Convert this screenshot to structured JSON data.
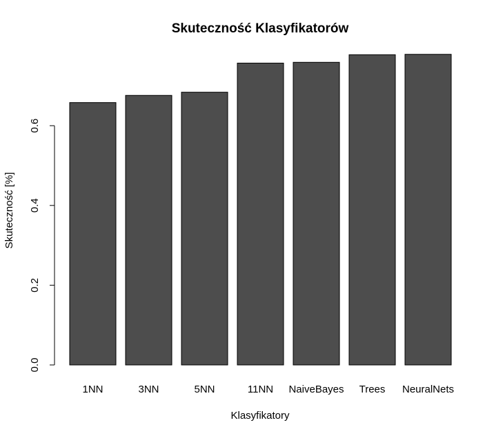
{
  "chart_data": {
    "type": "bar",
    "title": "Skuteczność Klasyfikatorów",
    "xlabel": "Klasyfikatory",
    "ylabel": "Skuteczność [%]",
    "categories": [
      "1NN",
      "3NN",
      "5NN",
      "11NN",
      "NaiveBayes",
      "Trees",
      "NeuralNets"
    ],
    "values": [
      0.658,
      0.676,
      0.684,
      0.757,
      0.759,
      0.778,
      0.779
    ],
    "yticks": [
      "0.0",
      "0.2",
      "0.4",
      "0.6"
    ],
    "ylim": [
      0,
      0.78
    ],
    "grid": false,
    "bar_color": "#4d4d4d",
    "border_color": "#000000"
  }
}
